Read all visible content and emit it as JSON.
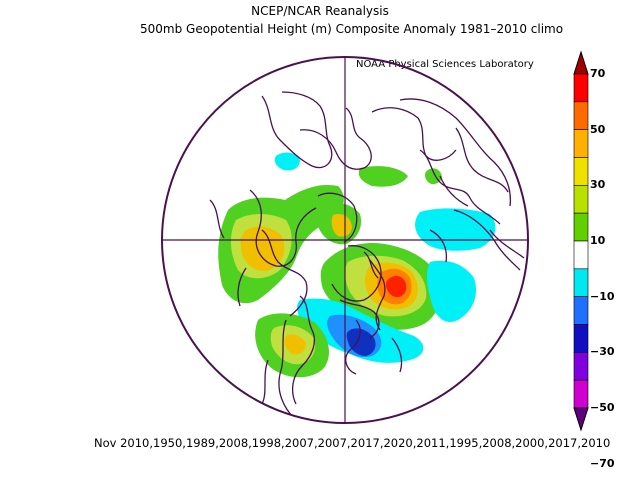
{
  "title_line1": "NCEP/NCAR Reanalysis",
  "title_line2": "500mb Geopotential Height (m) Composite Anomaly 1981–2010 climo",
  "credit": "NOAA Physical Sciences Laboratory",
  "footer": "Nov 2010,1950,1989,2008,1998,2007,2007,2017,2020,2011,1995,2008,2000,2017,2010",
  "colorbar": {
    "labels": [
      "70",
      "50",
      "30",
      "10",
      "−10",
      "−30",
      "−50",
      "−70"
    ],
    "colors": [
      "#ff0000",
      "#ff6a00",
      "#ffb000",
      "#f0e000",
      "#b8e000",
      "#60d000",
      "#ffffff",
      "#00e8f0",
      "#2070ff",
      "#1010c0",
      "#8000e0",
      "#d000d0"
    ],
    "top_arrow_color": "#a00000",
    "bottom_arrow_color": "#600080"
  },
  "map_colors": {
    "coast": "#4a1050",
    "green": "#50d020",
    "yellow_green": "#c0e040",
    "gold": "#f0c000",
    "orange": "#ff8000",
    "red": "#ff2000",
    "cyan": "#00f0f8",
    "blue": "#2090ff",
    "dark_blue": "#1030c0"
  }
}
